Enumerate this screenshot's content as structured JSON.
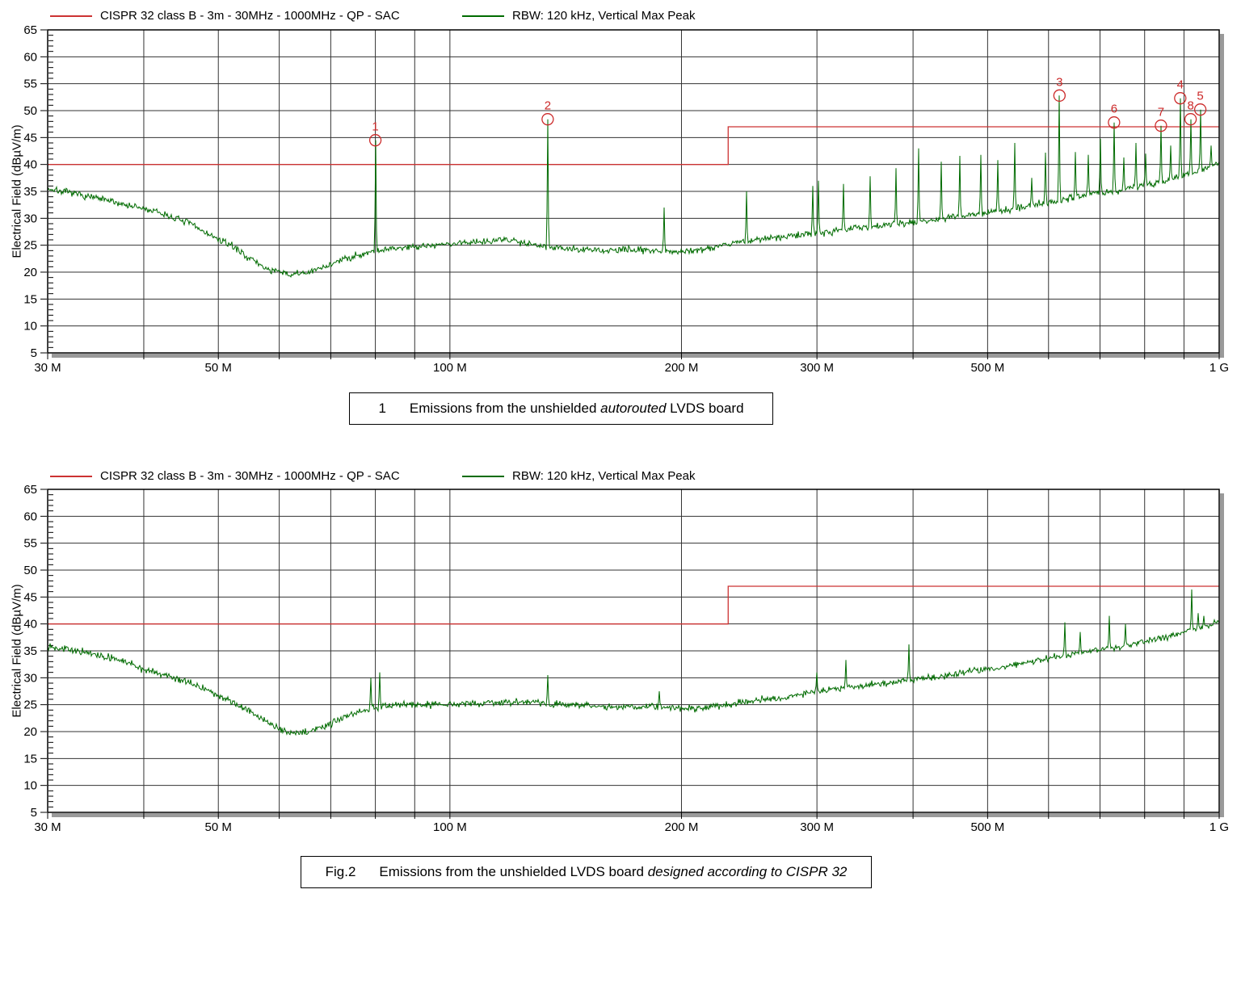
{
  "colors": {
    "limit_red": "#cc3333",
    "trace_green": "#006b00",
    "marker_red": "#cc2a2a",
    "grid": "#333333",
    "border": "#000000",
    "shadow": "#9a9a9a"
  },
  "legend": {
    "items": [
      {
        "label": "CISPR 32 class B - 3m - 30MHz - 1000MHz - QP - SAC",
        "color_key": "limit_red"
      },
      {
        "label": "RBW: 120 kHz, Vertical Max Peak",
        "color_key": "trace_green"
      }
    ]
  },
  "chart_data": [
    {
      "type": "line",
      "id": "fig1",
      "caption": {
        "prefix": "1",
        "text": "Emissions from the unshielded ",
        "italic": "autorouted",
        "suffix": " LVDS board"
      },
      "x_axis": {
        "scale": "log",
        "unit": "MHz",
        "min_mhz": 30,
        "max_mhz": 1000,
        "ticks": [
          {
            "mhz": 30,
            "label": "30 M"
          },
          {
            "mhz": 50,
            "label": "50 M"
          },
          {
            "mhz": 100,
            "label": "100 M"
          },
          {
            "mhz": 200,
            "label": "200 M"
          },
          {
            "mhz": 300,
            "label": "300 M"
          },
          {
            "mhz": 500,
            "label": "500 M"
          },
          {
            "mhz": 1000,
            "label": "1 G"
          }
        ],
        "gridlines_mhz": [
          40,
          50,
          60,
          70,
          80,
          90,
          100,
          200,
          300,
          400,
          500,
          600,
          700,
          800,
          900,
          1000
        ]
      },
      "y_axis": {
        "label": "Electrical Field (dBµV/m)",
        "min": 5,
        "max": 65,
        "major_step": 5,
        "minor_step": 1
      },
      "limit_line": {
        "name": "CISPR 32 class B - 3m - QP - SAC",
        "points_mhz_db": [
          [
            30,
            40
          ],
          [
            230,
            40
          ],
          [
            230,
            47
          ],
          [
            1000,
            47
          ]
        ]
      },
      "trace": {
        "name": "RBW: 120 kHz, Vertical Max Peak",
        "noise_db": 0.62,
        "seed": 7,
        "baseline_mhz_db": [
          [
            30,
            35.5
          ],
          [
            34,
            34
          ],
          [
            38,
            32.5
          ],
          [
            42,
            31
          ],
          [
            46,
            29
          ],
          [
            50,
            26
          ],
          [
            52,
            25
          ],
          [
            55,
            22.5
          ],
          [
            58,
            20.5
          ],
          [
            62,
            19.5
          ],
          [
            66,
            20
          ],
          [
            70,
            21.5
          ],
          [
            75,
            23
          ],
          [
            80,
            24
          ],
          [
            90,
            24.8
          ],
          [
            100,
            25.2
          ],
          [
            110,
            25.8
          ],
          [
            120,
            26
          ],
          [
            130,
            25
          ],
          [
            145,
            24.2
          ],
          [
            160,
            24
          ],
          [
            180,
            24.2
          ],
          [
            200,
            23.8
          ],
          [
            215,
            24.3
          ],
          [
            230,
            25.3
          ],
          [
            250,
            26
          ],
          [
            270,
            26.5
          ],
          [
            300,
            27.3
          ],
          [
            330,
            28
          ],
          [
            360,
            28.6
          ],
          [
            400,
            29.3
          ],
          [
            440,
            30
          ],
          [
            480,
            30.7
          ],
          [
            520,
            31.4
          ],
          [
            560,
            32.2
          ],
          [
            600,
            33
          ],
          [
            650,
            34
          ],
          [
            700,
            34.8
          ],
          [
            750,
            35.3
          ],
          [
            800,
            36.2
          ],
          [
            850,
            37
          ],
          [
            900,
            38
          ],
          [
            950,
            39
          ],
          [
            1000,
            40.2
          ]
        ],
        "spikes_mhz_db": [
          [
            80,
            44.5
          ],
          [
            134,
            48.4
          ],
          [
            190,
            32
          ],
          [
            243,
            35
          ],
          [
            296,
            36
          ],
          [
            301,
            37
          ],
          [
            325,
            36.4
          ],
          [
            352,
            37.8
          ],
          [
            380,
            39.3
          ],
          [
            407,
            43
          ],
          [
            435,
            40.5
          ],
          [
            460,
            41.6
          ],
          [
            490,
            41.8
          ],
          [
            515,
            40.8
          ],
          [
            542,
            44
          ],
          [
            570,
            37.5
          ],
          [
            595,
            42.2
          ],
          [
            620,
            52.8
          ],
          [
            650,
            42.3
          ],
          [
            676,
            41.8
          ],
          [
            700,
            44.8
          ],
          [
            730,
            47.8
          ],
          [
            752,
            41.3
          ],
          [
            780,
            44
          ],
          [
            802,
            42
          ],
          [
            840,
            47.2
          ],
          [
            865,
            43.5
          ],
          [
            890,
            52.3
          ],
          [
            918,
            48.4
          ],
          [
            945,
            50.2
          ],
          [
            975,
            43.5
          ]
        ]
      },
      "markers": [
        {
          "n": "1",
          "mhz": 80,
          "db": 44.5
        },
        {
          "n": "2",
          "mhz": 134,
          "db": 48.4
        },
        {
          "n": "3",
          "mhz": 620,
          "db": 52.8
        },
        {
          "n": "4",
          "mhz": 890,
          "db": 52.3
        },
        {
          "n": "5",
          "mhz": 945,
          "db": 50.2
        },
        {
          "n": "6",
          "mhz": 730,
          "db": 47.8
        },
        {
          "n": "7",
          "mhz": 840,
          "db": 47.2
        },
        {
          "n": "8",
          "mhz": 918,
          "db": 48.4
        }
      ]
    },
    {
      "type": "line",
      "id": "fig2",
      "caption": {
        "prefix": "Fig.2",
        "text": "Emissions from the unshielded LVDS board ",
        "italic": "designed according to CISPR 32",
        "suffix": ""
      },
      "x_axis": {
        "scale": "log",
        "unit": "MHz",
        "min_mhz": 30,
        "max_mhz": 1000,
        "ticks": [
          {
            "mhz": 30,
            "label": "30 M"
          },
          {
            "mhz": 50,
            "label": "50 M"
          },
          {
            "mhz": 100,
            "label": "100 M"
          },
          {
            "mhz": 200,
            "label": "200 M"
          },
          {
            "mhz": 300,
            "label": "300 M"
          },
          {
            "mhz": 500,
            "label": "500 M"
          },
          {
            "mhz": 1000,
            "label": "1 G"
          }
        ],
        "gridlines_mhz": [
          40,
          50,
          60,
          70,
          80,
          90,
          100,
          200,
          300,
          400,
          500,
          600,
          700,
          800,
          900,
          1000
        ]
      },
      "y_axis": {
        "label": "Electrical Field (dBµV/m)",
        "min": 5,
        "max": 65,
        "major_step": 5,
        "minor_step": 1
      },
      "limit_line": {
        "name": "CISPR 32 class B - 3m - QP - SAC",
        "points_mhz_db": [
          [
            30,
            40
          ],
          [
            230,
            40
          ],
          [
            230,
            47
          ],
          [
            1000,
            47
          ]
        ]
      },
      "trace": {
        "name": "RBW: 120 kHz, Vertical Max Peak",
        "noise_db": 0.62,
        "seed": 13,
        "baseline_mhz_db": [
          [
            30,
            36
          ],
          [
            34,
            34.5
          ],
          [
            38,
            33
          ],
          [
            40,
            31.5
          ],
          [
            44,
            30
          ],
          [
            48,
            28
          ],
          [
            50,
            26.5
          ],
          [
            53,
            25
          ],
          [
            56,
            23
          ],
          [
            60,
            20.5
          ],
          [
            63,
            19.5
          ],
          [
            67,
            20.5
          ],
          [
            70,
            21.5
          ],
          [
            75,
            23.5
          ],
          [
            80,
            24.5
          ],
          [
            85,
            25
          ],
          [
            95,
            25
          ],
          [
            100,
            25.2
          ],
          [
            110,
            25.3
          ],
          [
            125,
            25.5
          ],
          [
            140,
            25
          ],
          [
            155,
            24.7
          ],
          [
            170,
            24.5
          ],
          [
            185,
            24.8
          ],
          [
            200,
            24.3
          ],
          [
            215,
            24.5
          ],
          [
            230,
            25
          ],
          [
            250,
            25.8
          ],
          [
            270,
            26.3
          ],
          [
            300,
            27.5
          ],
          [
            330,
            28.2
          ],
          [
            360,
            28.8
          ],
          [
            400,
            29.6
          ],
          [
            440,
            30.4
          ],
          [
            480,
            31.2
          ],
          [
            520,
            32
          ],
          [
            560,
            32.8
          ],
          [
            600,
            33.6
          ],
          [
            650,
            34.5
          ],
          [
            700,
            35.2
          ],
          [
            750,
            35.8
          ],
          [
            800,
            36.8
          ],
          [
            850,
            37.5
          ],
          [
            900,
            38.5
          ],
          [
            950,
            39.3
          ],
          [
            1000,
            40.3
          ]
        ],
        "spikes_mhz_db": [
          [
            79,
            30
          ],
          [
            81,
            31
          ],
          [
            134,
            30.5
          ],
          [
            187,
            27.5
          ],
          [
            300,
            31
          ],
          [
            327,
            33.3
          ],
          [
            395,
            36.2
          ],
          [
            630,
            40.3
          ],
          [
            660,
            38.5
          ],
          [
            720,
            41.5
          ],
          [
            755,
            40
          ],
          [
            920,
            46.4
          ],
          [
            938,
            42
          ],
          [
            955,
            41.5
          ]
        ]
      },
      "markers": []
    }
  ]
}
